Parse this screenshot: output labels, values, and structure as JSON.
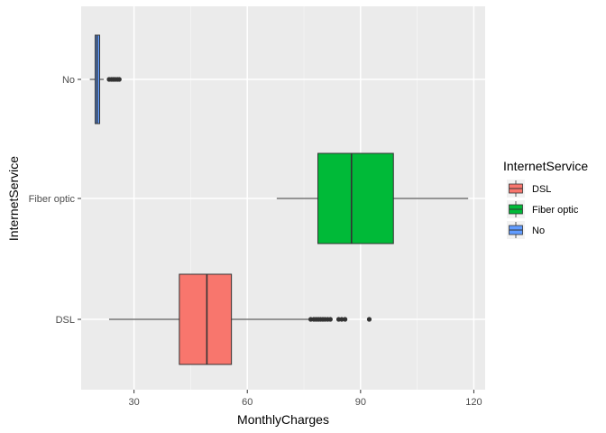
{
  "chart_data": {
    "type": "boxplot",
    "orientation": "horizontal",
    "xlabel": "MonthlyCharges",
    "ylabel": "InternetService",
    "xlim": [
      16,
      123
    ],
    "x_ticks": [
      30,
      60,
      90,
      120
    ],
    "x_tick_labels": [
      "30",
      "60",
      "90",
      "120"
    ],
    "categories": [
      "DSL",
      "Fiber optic",
      "No"
    ],
    "grid": true,
    "legend": {
      "title": "InternetService",
      "position": "right",
      "entries": [
        "DSL",
        "Fiber optic",
        "No"
      ]
    },
    "series": [
      {
        "name": "DSL",
        "color": "#F8766D",
        "whisker_low": 23.4,
        "q1": 42.0,
        "median": 49.3,
        "q3": 55.8,
        "whisker_high": 76.3,
        "outliers": [
          76.8,
          77.6,
          78.2,
          78.8,
          79.4,
          80.0,
          80.6,
          81.3,
          82.0,
          84.2,
          85.0,
          85.9,
          92.3
        ]
      },
      {
        "name": "Fiber optic",
        "color": "#00BA38",
        "whisker_low": 67.8,
        "q1": 78.7,
        "median": 87.6,
        "q3": 98.7,
        "whisker_high": 118.5,
        "outliers": []
      },
      {
        "name": "No",
        "color": "#619CFF",
        "whisker_low": 18.3,
        "q1": 19.7,
        "median": 20.2,
        "q3": 20.9,
        "whisker_high": 22.0,
        "outliers": [
          23.4,
          24.0,
          24.5,
          25.0,
          25.6,
          26.1
        ]
      }
    ]
  }
}
